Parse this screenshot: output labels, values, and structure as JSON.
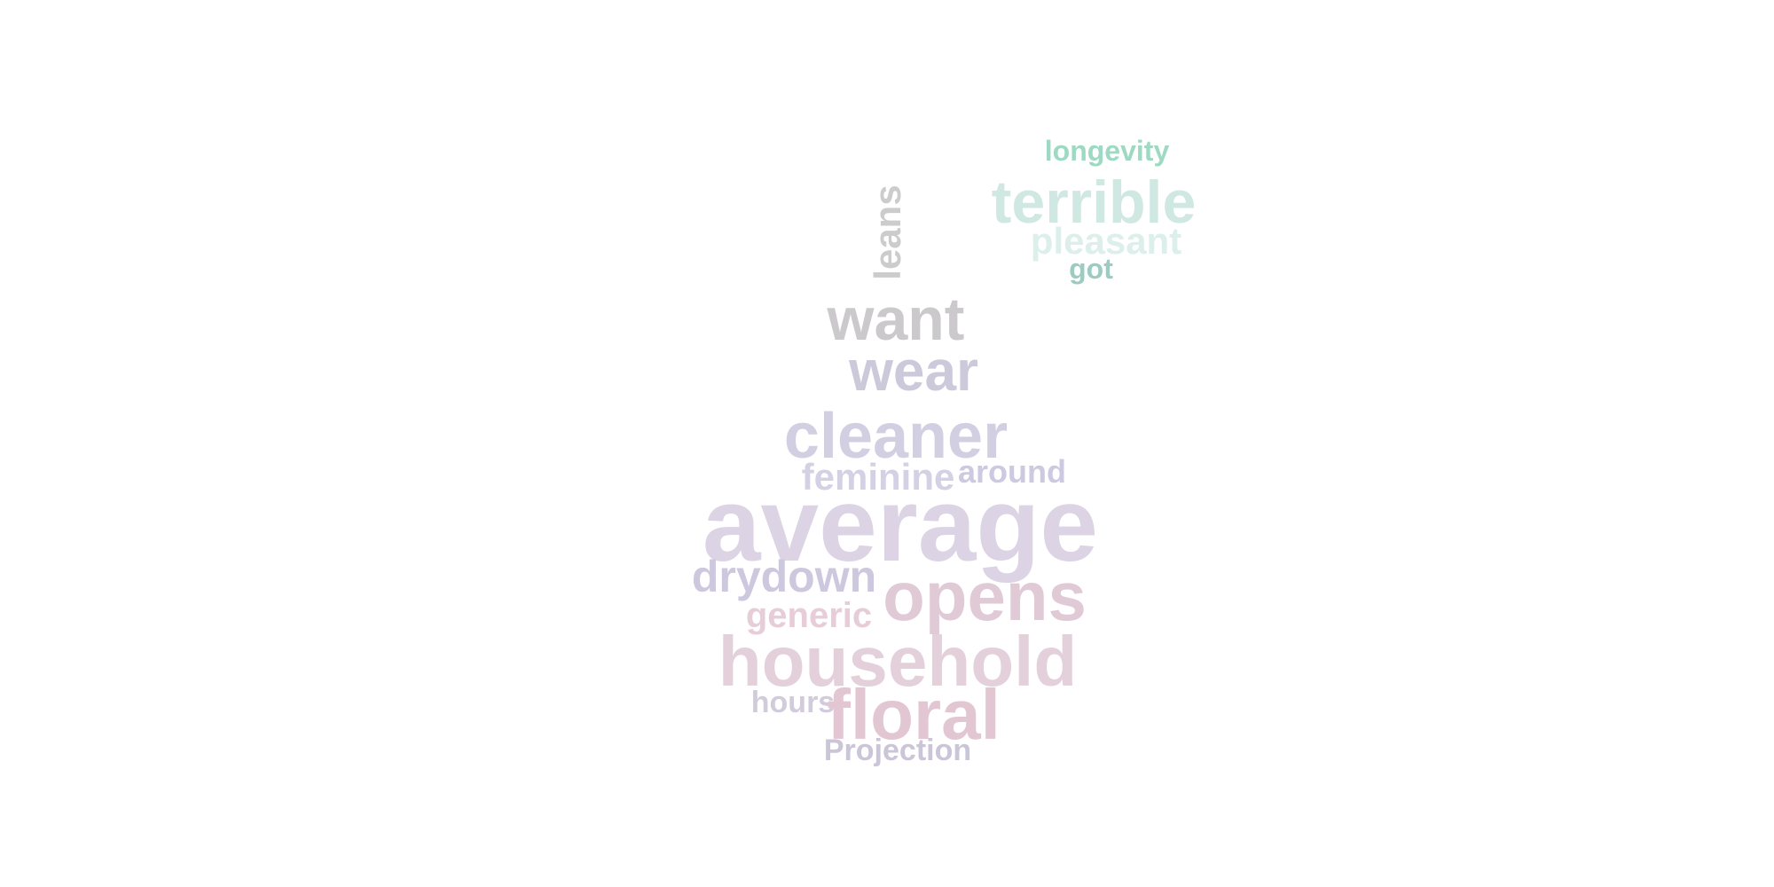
{
  "word_cloud": {
    "words": [
      {
        "id": "longevity",
        "text": "longevity",
        "color": "#9ed9c3"
      },
      {
        "id": "terrible",
        "text": "terrible",
        "color": "#cfe8e2"
      },
      {
        "id": "pleasant",
        "text": "pleasant",
        "color": "#dcefeb"
      },
      {
        "id": "got",
        "text": "got",
        "color": "#9ccbc1"
      },
      {
        "id": "leans",
        "text": "leans",
        "color": "#cccccc"
      },
      {
        "id": "want",
        "text": "want",
        "color": "#cbc9cc"
      },
      {
        "id": "wear",
        "text": "wear",
        "color": "#cbc9da"
      },
      {
        "id": "cleaner",
        "text": "cleaner",
        "color": "#d3cfe2"
      },
      {
        "id": "feminine",
        "text": "feminine",
        "color": "#d5d1e5"
      },
      {
        "id": "around",
        "text": "around",
        "color": "#ccc9e0"
      },
      {
        "id": "average",
        "text": "average",
        "color": "#dcd4e4"
      },
      {
        "id": "drydown",
        "text": "drydown",
        "color": "#cdc8de"
      },
      {
        "id": "opens",
        "text": "opens",
        "color": "#e0cad6"
      },
      {
        "id": "generic",
        "text": "generic",
        "color": "#e6cdd8"
      },
      {
        "id": "household",
        "text": "household",
        "color": "#e3d0db"
      },
      {
        "id": "hours",
        "text": "hours",
        "color": "#d2cbdb"
      },
      {
        "id": "floral",
        "text": "floral",
        "color": "#e2c6d1"
      },
      {
        "id": "Projection",
        "text": "Projection",
        "color": "#cbc5d8"
      }
    ]
  }
}
